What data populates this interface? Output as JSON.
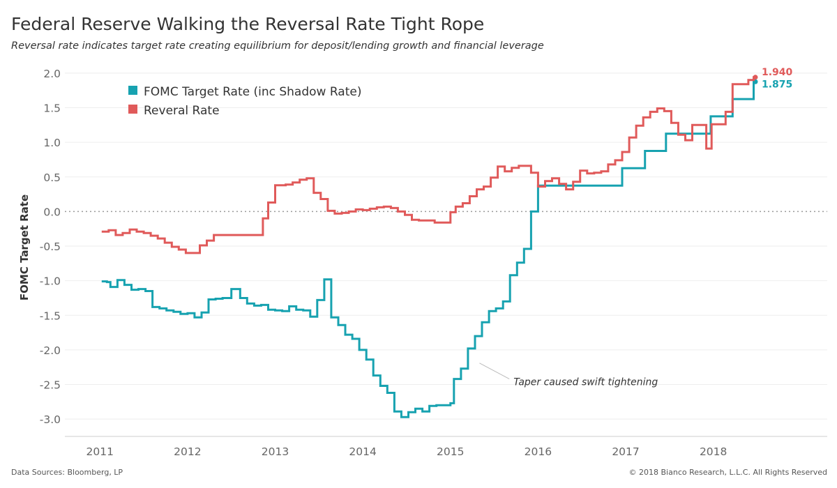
{
  "header": {
    "title": "Federal Reserve Walking the Reversal Rate Tight Rope",
    "subtitle": "Reversal rate indicates target rate creating equilibrium for deposit/lending growth and financial leverage"
  },
  "footer": {
    "source": "Data Sources: Bloomberg, LP",
    "copyright": "© 2018 Bianco Research, L.L.C. All Rights Reserved"
  },
  "chart_data": {
    "type": "line",
    "ylabel": "FOMC Target Rate",
    "xlabel": "",
    "xlim": [
      2010.6,
      2019.3
    ],
    "ylim": [
      -3.25,
      2.2
    ],
    "x_ticks": [
      2011,
      2012,
      2013,
      2014,
      2015,
      2016,
      2017,
      2018
    ],
    "y_ticks": [
      -3.0,
      -2.5,
      -2.0,
      -1.5,
      -1.0,
      -0.5,
      0.0,
      0.5,
      1.0,
      1.5,
      2.0
    ],
    "y_tick_labels": [
      "-3.0",
      "-2.5",
      "-2.0",
      "-1.5",
      "-1.0",
      "-0.5",
      "0.0",
      "0.5",
      "1.0",
      "1.5",
      "2.0"
    ],
    "zero_line": true,
    "grid": "horizontal",
    "legend_position": "top-left",
    "series": [
      {
        "name": "FOMC Target Rate (inc Shadow Rate)",
        "color": "#17a2b0",
        "end_label": "1.875",
        "points": [
          [
            2011.02,
            -1.01
          ],
          [
            2011.08,
            -1.02
          ],
          [
            2011.12,
            -1.09
          ],
          [
            2011.2,
            -0.99
          ],
          [
            2011.28,
            -1.06
          ],
          [
            2011.36,
            -1.13
          ],
          [
            2011.44,
            -1.12
          ],
          [
            2011.52,
            -1.15
          ],
          [
            2011.6,
            -1.38
          ],
          [
            2011.68,
            -1.4
          ],
          [
            2011.76,
            -1.43
          ],
          [
            2011.84,
            -1.45
          ],
          [
            2011.92,
            -1.48
          ],
          [
            2012.0,
            -1.47
          ],
          [
            2012.08,
            -1.53
          ],
          [
            2012.16,
            -1.46
          ],
          [
            2012.24,
            -1.27
          ],
          [
            2012.32,
            -1.26
          ],
          [
            2012.4,
            -1.25
          ],
          [
            2012.5,
            -1.12
          ],
          [
            2012.6,
            -1.25
          ],
          [
            2012.68,
            -1.33
          ],
          [
            2012.76,
            -1.36
          ],
          [
            2012.84,
            -1.35
          ],
          [
            2012.92,
            -1.42
          ],
          [
            2013.0,
            -1.43
          ],
          [
            2013.08,
            -1.44
          ],
          [
            2013.16,
            -1.37
          ],
          [
            2013.24,
            -1.42
          ],
          [
            2013.32,
            -1.43
          ],
          [
            2013.4,
            -1.52
          ],
          [
            2013.48,
            -1.28
          ],
          [
            2013.56,
            -0.98
          ],
          [
            2013.64,
            -1.53
          ],
          [
            2013.72,
            -1.64
          ],
          [
            2013.8,
            -1.78
          ],
          [
            2013.88,
            -1.84
          ],
          [
            2013.96,
            -2.0
          ],
          [
            2014.04,
            -2.14
          ],
          [
            2014.12,
            -2.37
          ],
          [
            2014.2,
            -2.52
          ],
          [
            2014.28,
            -2.62
          ],
          [
            2014.36,
            -2.89
          ],
          [
            2014.44,
            -2.97
          ],
          [
            2014.52,
            -2.9
          ],
          [
            2014.6,
            -2.85
          ],
          [
            2014.68,
            -2.89
          ],
          [
            2014.76,
            -2.81
          ],
          [
            2014.84,
            -2.8
          ],
          [
            2014.92,
            -2.8
          ],
          [
            2015.0,
            -2.77
          ],
          [
            2015.04,
            -2.42
          ],
          [
            2015.12,
            -2.27
          ],
          [
            2015.2,
            -1.98
          ],
          [
            2015.28,
            -1.8
          ],
          [
            2015.36,
            -1.6
          ],
          [
            2015.44,
            -1.44
          ],
          [
            2015.52,
            -1.4
          ],
          [
            2015.6,
            -1.3
          ],
          [
            2015.68,
            -0.92
          ],
          [
            2015.76,
            -0.74
          ],
          [
            2015.84,
            -0.54
          ],
          [
            2015.92,
            0.0
          ],
          [
            2016.0,
            0.375
          ],
          [
            2016.96,
            0.625
          ],
          [
            2017.22,
            0.875
          ],
          [
            2017.46,
            1.125
          ],
          [
            2017.97,
            1.375
          ],
          [
            2018.22,
            1.625
          ],
          [
            2018.46,
            1.875
          ]
        ],
        "end_x": 2018.48
      },
      {
        "name": "Reveral Rate",
        "color": "#e05a5a",
        "end_label": "1.940",
        "points": [
          [
            2011.02,
            -0.29
          ],
          [
            2011.1,
            -0.27
          ],
          [
            2011.18,
            -0.34
          ],
          [
            2011.26,
            -0.31
          ],
          [
            2011.34,
            -0.26
          ],
          [
            2011.42,
            -0.29
          ],
          [
            2011.5,
            -0.31
          ],
          [
            2011.58,
            -0.35
          ],
          [
            2011.66,
            -0.39
          ],
          [
            2011.74,
            -0.45
          ],
          [
            2011.82,
            -0.51
          ],
          [
            2011.9,
            -0.55
          ],
          [
            2011.98,
            -0.6
          ],
          [
            2012.14,
            -0.49
          ],
          [
            2012.22,
            -0.42
          ],
          [
            2012.3,
            -0.34
          ],
          [
            2012.86,
            -0.1
          ],
          [
            2012.92,
            0.13
          ],
          [
            2013.0,
            0.38
          ],
          [
            2013.12,
            0.39
          ],
          [
            2013.2,
            0.42
          ],
          [
            2013.28,
            0.46
          ],
          [
            2013.36,
            0.48
          ],
          [
            2013.44,
            0.27
          ],
          [
            2013.52,
            0.18
          ],
          [
            2013.6,
            0.01
          ],
          [
            2013.68,
            -0.03
          ],
          [
            2013.76,
            -0.02
          ],
          [
            2013.84,
            0.0
          ],
          [
            2013.92,
            0.03
          ],
          [
            2014.0,
            0.02
          ],
          [
            2014.08,
            0.04
          ],
          [
            2014.16,
            0.06
          ],
          [
            2014.24,
            0.07
          ],
          [
            2014.32,
            0.05
          ],
          [
            2014.4,
            0.0
          ],
          [
            2014.48,
            -0.05
          ],
          [
            2014.56,
            -0.12
          ],
          [
            2014.64,
            -0.13
          ],
          [
            2014.72,
            -0.13
          ],
          [
            2014.82,
            -0.16
          ],
          [
            2015.0,
            -0.01
          ],
          [
            2015.06,
            0.07
          ],
          [
            2015.14,
            0.12
          ],
          [
            2015.22,
            0.22
          ],
          [
            2015.3,
            0.32
          ],
          [
            2015.38,
            0.36
          ],
          [
            2015.46,
            0.49
          ],
          [
            2015.54,
            0.65
          ],
          [
            2015.62,
            0.58
          ],
          [
            2015.7,
            0.63
          ],
          [
            2015.78,
            0.66
          ],
          [
            2015.86,
            0.66
          ],
          [
            2015.92,
            0.56
          ],
          [
            2016.0,
            0.36
          ],
          [
            2016.08,
            0.44
          ],
          [
            2016.16,
            0.48
          ],
          [
            2016.24,
            0.4
          ],
          [
            2016.32,
            0.32
          ],
          [
            2016.4,
            0.43
          ],
          [
            2016.48,
            0.59
          ],
          [
            2016.56,
            0.55
          ],
          [
            2016.64,
            0.56
          ],
          [
            2016.72,
            0.58
          ],
          [
            2016.8,
            0.68
          ],
          [
            2016.88,
            0.74
          ],
          [
            2016.96,
            0.86
          ],
          [
            2017.04,
            1.07
          ],
          [
            2017.12,
            1.24
          ],
          [
            2017.2,
            1.36
          ],
          [
            2017.28,
            1.44
          ],
          [
            2017.36,
            1.49
          ],
          [
            2017.44,
            1.45
          ],
          [
            2017.52,
            1.28
          ],
          [
            2017.6,
            1.11
          ],
          [
            2017.68,
            1.03
          ],
          [
            2017.76,
            1.25
          ],
          [
            2017.92,
            0.91
          ],
          [
            2017.98,
            1.26
          ],
          [
            2018.14,
            1.44
          ],
          [
            2018.22,
            1.84
          ],
          [
            2018.4,
            1.9
          ],
          [
            2018.46,
            1.94
          ]
        ],
        "end_x": 2018.48
      }
    ],
    "annotations": [
      {
        "text": "Taper caused swift tightening",
        "x": 2015.3,
        "y": -2.15,
        "label_x": 2015.72,
        "label_y": -2.46
      }
    ]
  }
}
